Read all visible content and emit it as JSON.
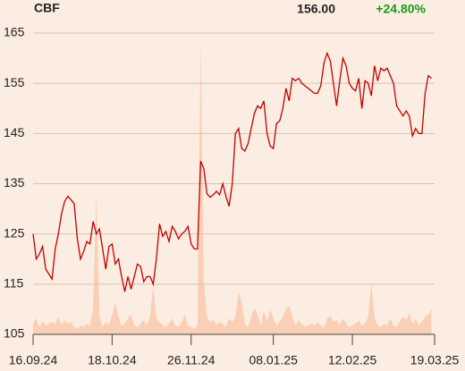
{
  "chart_data": {
    "type": "line",
    "title": "CBF",
    "last_price": "156.00",
    "change": "+24.80%",
    "change_color": "#1a9a1a",
    "series": [
      {
        "name": "CBF",
        "color": "#c00000",
        "values": [
          125,
          120,
          121,
          122.5,
          118,
          117,
          116,
          122,
          125,
          129,
          131.5,
          132.5,
          131.8,
          131,
          124,
          120,
          121.5,
          123.5,
          123,
          127.5,
          125,
          126,
          122,
          118,
          122.5,
          123,
          119,
          120,
          116.5,
          113.5,
          116.5,
          114,
          116.5,
          119,
          118.5,
          115.5,
          116.5,
          116.5,
          115,
          120,
          127,
          124.5,
          125.5,
          123.5,
          126.5,
          125.5,
          124,
          125,
          125.5,
          126.5,
          123,
          122,
          122,
          139.5,
          138,
          133,
          132.3,
          132.8,
          133.5,
          132.8,
          135,
          132.5,
          130.5,
          135,
          145,
          146,
          142,
          141.5,
          143,
          146,
          149,
          150.5,
          150,
          151.5,
          145,
          142.5,
          142,
          147,
          147.5,
          150,
          154,
          151.5,
          156,
          155.5,
          156,
          155,
          154.5,
          154,
          153.5,
          153,
          153,
          154.5,
          159,
          161,
          159.5,
          155,
          150.5,
          155.5,
          160,
          158.5,
          155,
          154,
          153.5,
          156,
          150,
          155.5,
          155,
          152.5,
          158.5,
          155.5,
          158,
          157.5,
          158,
          156.5,
          155,
          150.5,
          149.5,
          148.5,
          149.5,
          148.5,
          144.5,
          146,
          145,
          145,
          153,
          156.5,
          156
        ]
      },
      {
        "type": "area",
        "axis": "y2",
        "color": "#f9d0b6",
        "values": [
          12,
          18,
          8,
          15,
          10,
          12,
          14,
          12,
          20,
          10,
          16,
          12,
          14,
          8,
          6,
          10,
          8,
          12,
          10,
          30,
          160,
          20,
          8,
          14,
          10,
          22,
          36,
          20,
          10,
          12,
          18,
          22,
          10,
          8,
          12,
          16,
          10,
          20,
          55,
          18,
          14,
          10,
          8,
          12,
          18,
          10,
          8,
          14,
          22,
          10,
          8,
          6,
          10,
          330,
          60,
          20,
          14,
          16,
          10,
          14,
          12,
          8,
          18,
          14,
          20,
          48,
          36,
          12,
          8,
          20,
          30,
          22,
          10,
          26,
          14,
          28,
          18,
          10,
          14,
          20,
          28,
          32,
          20,
          10,
          16,
          12,
          8,
          10,
          12,
          10,
          14,
          10,
          8,
          18,
          20,
          14,
          16,
          10,
          18,
          12,
          8,
          10,
          12,
          16,
          10,
          12,
          20,
          58,
          18,
          10,
          8,
          12,
          10,
          18,
          10,
          8,
          14,
          20,
          16,
          24,
          12,
          18,
          10,
          14,
          20,
          22,
          28
        ]
      }
    ],
    "xlim": [
      0,
      127
    ],
    "xticks": [
      {
        "value": 0,
        "label": "16.09.24"
      },
      {
        "value": 25,
        "label": "18.10.24"
      },
      {
        "value": 50,
        "label": "26.11.24"
      },
      {
        "value": 76,
        "label": "08.01.25"
      },
      {
        "value": 101,
        "label": "12.02.25"
      },
      {
        "value": 127,
        "label": "19.03.25"
      }
    ],
    "ylim": [
      105,
      165
    ],
    "yticks": [
      105,
      115,
      125,
      135,
      145,
      155,
      165
    ],
    "y2lim": [
      0,
      340
    ],
    "grid": true
  }
}
